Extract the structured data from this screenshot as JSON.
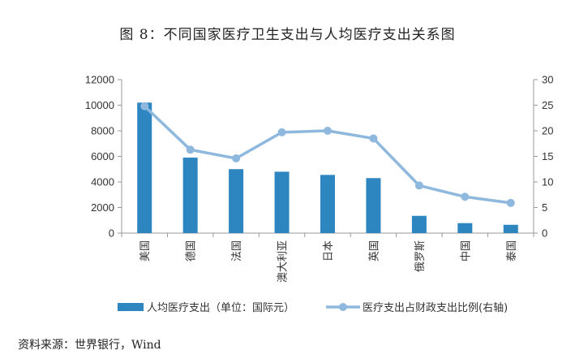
{
  "title": "图 8：不同国家医疗卫生支出与人均医疗支出关系图",
  "source": "资料来源：世界银行，Wind",
  "chart_data": {
    "type": "bar+line",
    "categories": [
      "美国",
      "德国",
      "法国",
      "澳大利亚",
      "日本",
      "英国",
      "俄罗斯",
      "中国",
      "泰国"
    ],
    "series": [
      {
        "name": "人均医疗支出（单位：国际元）",
        "type": "bar",
        "axis": "left",
        "values": [
          10200,
          5900,
          5000,
          4800,
          4550,
          4300,
          1350,
          780,
          650
        ]
      },
      {
        "name": "医疗支出占财政支出比例(右轴)",
        "type": "line",
        "axis": "right",
        "values": [
          24.8,
          16.3,
          14.6,
          19.7,
          20.0,
          18.5,
          9.3,
          7.1,
          5.9
        ]
      }
    ],
    "y_left": {
      "min": 0,
      "max": 12000,
      "ticks": [
        0,
        2000,
        4000,
        6000,
        8000,
        10000,
        12000
      ]
    },
    "y_right": {
      "min": 0,
      "max": 30,
      "ticks": [
        0,
        5,
        10,
        15,
        20,
        25,
        30
      ]
    },
    "colors": {
      "bar": "#2e86c1",
      "line": "#8fb8de"
    },
    "grid": false,
    "legend_position": "bottom"
  }
}
